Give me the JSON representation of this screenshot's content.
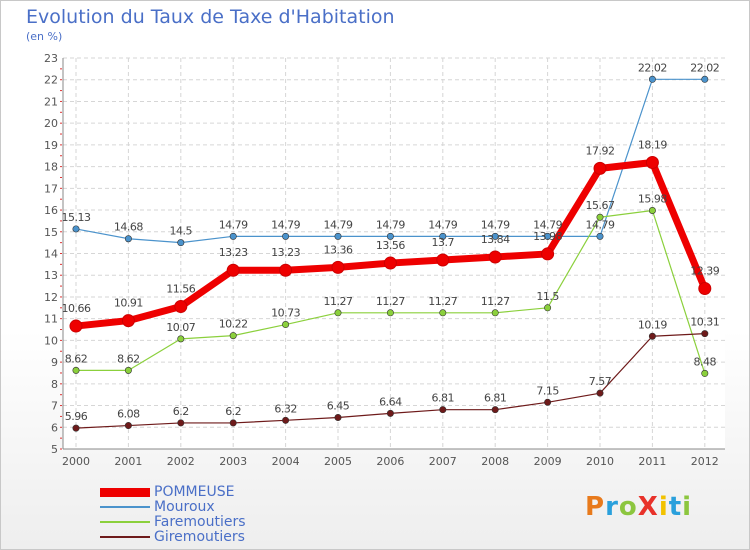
{
  "title": "Evolution du Taux de Taxe d'Habitation",
  "subtitle": "(en %)",
  "logo": {
    "text": "ProXiti",
    "colors": [
      "#e87a1c",
      "#2aa0dc",
      "#8cc63f",
      "#e8322a",
      "#f2c200",
      "#2aa0dc",
      "#8cc63f"
    ]
  },
  "chart_data": {
    "type": "line",
    "title": "Evolution du Taux de Taxe d'Habitation",
    "ylabel": "(en %)",
    "xlabel": "",
    "ylim": [
      5,
      23
    ],
    "yticks": [
      5,
      6,
      7,
      8,
      9,
      10,
      11,
      12,
      13,
      14,
      15,
      16,
      17,
      18,
      19,
      20,
      21,
      22,
      23
    ],
    "grid": true,
    "legend_position": "bottom-left",
    "x": [
      "2000",
      "2001",
      "2002",
      "2003",
      "2004",
      "2005",
      "2006",
      "2007",
      "2008",
      "2009",
      "2010",
      "2011",
      "2012"
    ],
    "series": [
      {
        "name": "POMMEUSE",
        "color": "#ee0000",
        "values": [
          10.66,
          10.91,
          11.56,
          13.23,
          13.23,
          13.36,
          13.56,
          13.7,
          13.84,
          13.98,
          17.92,
          18.19,
          12.39
        ],
        "labels": [
          "10.66",
          "10.91",
          "11.56",
          "13.23",
          "13.23",
          "13.36",
          "13.56",
          "13.7",
          "13.84",
          "13.98",
          "17.92",
          "18.19",
          "12.39"
        ]
      },
      {
        "name": "Mouroux",
        "color": "#4b93cc",
        "values": [
          15.13,
          14.68,
          14.5,
          14.79,
          14.79,
          14.79,
          14.79,
          14.79,
          14.79,
          14.79,
          14.79,
          22.02,
          22.02
        ],
        "labels": [
          "15.13",
          "14.68",
          "14.5",
          "14.79",
          "14.79",
          "14.79",
          "14.79",
          "14.79",
          "14.79",
          "14.79",
          "14.79",
          "22.02",
          "22.02"
        ]
      },
      {
        "name": "Faremoutiers",
        "color": "#8bd03c",
        "values": [
          8.62,
          8.62,
          10.07,
          10.22,
          10.73,
          11.27,
          11.27,
          11.27,
          11.27,
          11.5,
          15.67,
          15.98,
          8.48
        ],
        "labels": [
          "8.62",
          "8.62",
          "10.07",
          "10.22",
          "10.73",
          "11.27",
          "11.27",
          "11.27",
          "11.27",
          "11.5",
          "15.67",
          "15.98",
          "8.48"
        ]
      },
      {
        "name": "Giremoutiers",
        "color": "#6e1a1a",
        "values": [
          5.96,
          6.08,
          6.2,
          6.2,
          6.32,
          6.45,
          6.64,
          6.81,
          6.81,
          7.15,
          7.57,
          10.19,
          10.31
        ],
        "labels": [
          "5.96",
          "6.08",
          "6.2",
          "6.2",
          "6.32",
          "6.45",
          "6.64",
          "6.81",
          "6.81",
          "7.15",
          "7.57",
          "10.19",
          "10.31"
        ]
      }
    ]
  }
}
